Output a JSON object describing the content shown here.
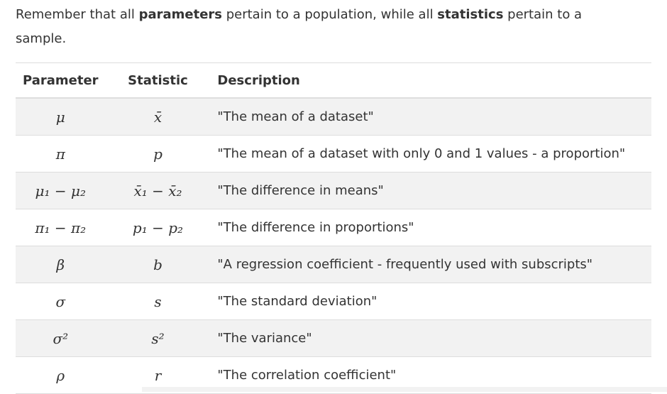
{
  "intro": {
    "part1": "Remember that all ",
    "bold1": "parameters",
    "part2": " pertain to a population, while all ",
    "bold2": "statistics",
    "part3": " pertain to a sample."
  },
  "table": {
    "headers": [
      "Parameter",
      "Statistic",
      "Description"
    ],
    "rows": [
      {
        "parameter": "μ",
        "statistic": "x̄",
        "description": "\"The mean of a dataset\""
      },
      {
        "parameter": "π",
        "statistic": "p",
        "description": "\"The mean of a dataset with only 0 and 1 values - a proportion\""
      },
      {
        "parameter": "μ₁ − μ₂",
        "statistic": "x̄₁ − x̄₂",
        "description": "\"The difference in means\""
      },
      {
        "parameter": "π₁ − π₂",
        "statistic": "p₁ − p₂",
        "description": "\"The difference in proportions\""
      },
      {
        "parameter": "β",
        "statistic": "b",
        "description": "\"A regression coefficient - frequently used with subscripts\""
      },
      {
        "parameter": "σ",
        "statistic": "s",
        "description": "\"The standard deviation\""
      },
      {
        "parameter": "σ²",
        "statistic": "s²",
        "description": "\"The variance\""
      },
      {
        "parameter": "ρ",
        "statistic": "r",
        "description": "\"The correlation coefficient\""
      }
    ]
  }
}
